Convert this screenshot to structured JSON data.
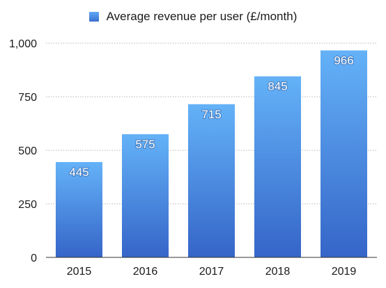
{
  "chart_data": {
    "type": "bar",
    "categories": [
      "2015",
      "2016",
      "2017",
      "2018",
      "2019"
    ],
    "series": [
      {
        "name": "Average revenue per user (£/month)",
        "values": [
          445,
          575,
          715,
          845,
          966
        ]
      }
    ],
    "data_labels": [
      "445",
      "575",
      "715",
      "845",
      "966"
    ],
    "y_ticks": [
      0,
      250,
      500,
      750,
      1000
    ],
    "y_tick_labels": [
      "0",
      "250",
      "500",
      "750",
      "1,000"
    ],
    "ylim": [
      0,
      1000
    ],
    "grid": true,
    "legend": "top-center",
    "colors": {
      "bar_top": "#64b2f8",
      "bar_bottom": "#3565c8",
      "grid": "#b5b5b5",
      "axis": "#333333"
    }
  }
}
